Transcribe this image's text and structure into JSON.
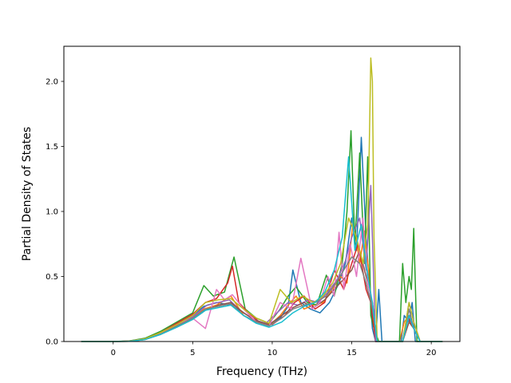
{
  "chart_data": {
    "type": "line",
    "title": "",
    "xlabel": "Frequency (THz)",
    "ylabel": "Partial Density of States",
    "xlim": [
      -3.1,
      21.8
    ],
    "ylim": [
      0,
      2.27
    ],
    "xticks": [
      0,
      5,
      10,
      15,
      20
    ],
    "yticks": [
      0.0,
      0.5,
      1.0,
      1.5,
      2.0
    ],
    "xtick_labels": [
      "0",
      "5",
      "10",
      "15",
      "20"
    ],
    "ytick_labels": [
      "0.0",
      "0.5",
      "1.0",
      "1.5",
      "2.0"
    ],
    "grid": false,
    "legend": "none",
    "series_colors": [
      "#1f77b4",
      "#ff7f0e",
      "#2ca02c",
      "#d62728",
      "#9467bd",
      "#8c564b",
      "#e377c2",
      "#7f7f7f",
      "#bcbd22",
      "#17becf"
    ],
    "series": [
      {
        "color": "#1f77b4",
        "x": [
          -2.0,
          0.0,
          1.0,
          2.0,
          3.0,
          4.0,
          5.0,
          5.7,
          6.5,
          7.4,
          8.2,
          9.0,
          9.8,
          10.5,
          11.0,
          11.3,
          11.8,
          12.4,
          13.0,
          13.6,
          14.2,
          14.6,
          15.0,
          15.3,
          15.6,
          15.9,
          16.1,
          16.3,
          16.5,
          16.7,
          16.9,
          17.5,
          18.1,
          18.3,
          18.6,
          18.8,
          19.0,
          19.5,
          20.0,
          20.7
        ],
        "y": [
          0.0,
          0.0,
          0.003,
          0.02,
          0.07,
          0.13,
          0.2,
          0.27,
          0.3,
          0.28,
          0.22,
          0.16,
          0.13,
          0.18,
          0.27,
          0.55,
          0.3,
          0.25,
          0.22,
          0.3,
          0.45,
          0.6,
          0.95,
          0.7,
          1.57,
          0.8,
          0.45,
          0.1,
          0.0,
          0.4,
          0.0,
          0.0,
          0.0,
          0.2,
          0.15,
          0.3,
          0.0,
          0.0,
          0.0,
          0.0
        ]
      },
      {
        "color": "#ff7f0e",
        "x": [
          -2.0,
          0.0,
          1.0,
          2.0,
          3.0,
          4.0,
          5.0,
          5.7,
          6.5,
          7.4,
          8.2,
          9.0,
          9.8,
          10.5,
          11.0,
          11.5,
          12.0,
          12.6,
          13.2,
          13.8,
          14.3,
          14.7,
          15.1,
          15.5,
          15.8,
          16.1,
          16.3,
          16.5,
          17.0,
          18.0,
          18.3,
          18.6,
          18.9,
          19.3,
          20.0,
          20.7
        ],
        "y": [
          0.0,
          0.0,
          0.002,
          0.015,
          0.06,
          0.12,
          0.18,
          0.25,
          0.28,
          0.35,
          0.2,
          0.15,
          0.12,
          0.2,
          0.28,
          0.35,
          0.25,
          0.28,
          0.3,
          0.4,
          0.5,
          0.45,
          0.95,
          0.6,
          0.85,
          0.5,
          0.2,
          0.0,
          0.0,
          0.0,
          0.15,
          0.2,
          0.1,
          0.0,
          0.0,
          0.0
        ]
      },
      {
        "color": "#2ca02c",
        "x": [
          -2.0,
          0.0,
          1.0,
          2.0,
          3.0,
          4.0,
          5.0,
          5.7,
          6.3,
          7.0,
          7.6,
          8.3,
          9.0,
          9.8,
          10.5,
          11.0,
          11.5,
          12.2,
          12.8,
          13.4,
          13.9,
          14.4,
          14.7,
          14.95,
          15.2,
          15.5,
          15.8,
          16.0,
          16.2,
          16.4,
          16.7,
          17.5,
          18.0,
          18.2,
          18.4,
          18.6,
          18.75,
          18.9,
          19.1,
          19.6,
          20.0,
          20.7
        ],
        "y": [
          0.0,
          0.0,
          0.004,
          0.025,
          0.08,
          0.15,
          0.22,
          0.43,
          0.35,
          0.38,
          0.65,
          0.25,
          0.18,
          0.14,
          0.25,
          0.35,
          0.42,
          0.3,
          0.28,
          0.51,
          0.35,
          0.6,
          1.0,
          1.62,
          0.75,
          1.45,
          0.6,
          1.42,
          0.2,
          0.1,
          0.0,
          0.0,
          0.0,
          0.6,
          0.3,
          0.5,
          0.4,
          0.87,
          0.0,
          0.0,
          0.0,
          0.0
        ]
      },
      {
        "color": "#d62728",
        "x": [
          -2.0,
          0.0,
          1.0,
          2.0,
          3.0,
          4.0,
          5.0,
          5.8,
          6.5,
          7.2,
          7.5,
          7.9,
          8.5,
          9.2,
          10.0,
          10.8,
          11.4,
          12.0,
          12.7,
          13.3,
          13.9,
          14.5,
          15.0,
          15.4,
          15.9,
          16.2,
          16.5,
          17.0,
          18.2,
          18.5,
          18.9,
          19.3,
          20.7
        ],
        "y": [
          0.0,
          0.0,
          0.003,
          0.02,
          0.07,
          0.14,
          0.21,
          0.3,
          0.33,
          0.45,
          0.58,
          0.3,
          0.22,
          0.15,
          0.13,
          0.2,
          0.3,
          0.35,
          0.25,
          0.3,
          0.55,
          0.4,
          0.6,
          0.75,
          0.4,
          0.3,
          0.0,
          0.0,
          0.0,
          0.2,
          0.1,
          0.0,
          0.0
        ]
      },
      {
        "color": "#9467bd",
        "x": [
          -2.0,
          0.0,
          1.0,
          2.0,
          3.0,
          4.0,
          5.0,
          5.9,
          6.6,
          7.3,
          8.0,
          8.8,
          9.6,
          10.3,
          11.0,
          11.6,
          12.3,
          12.9,
          13.5,
          14.1,
          14.6,
          15.0,
          15.5,
          15.9,
          16.2,
          16.5,
          17.0,
          18.2,
          18.6,
          18.9,
          19.3,
          20.7
        ],
        "y": [
          0.0,
          0.0,
          0.003,
          0.018,
          0.06,
          0.12,
          0.19,
          0.28,
          0.3,
          0.32,
          0.24,
          0.17,
          0.14,
          0.22,
          0.3,
          0.28,
          0.32,
          0.3,
          0.38,
          0.48,
          0.62,
          0.8,
          0.95,
          0.55,
          1.2,
          0.0,
          0.0,
          0.0,
          0.3,
          0.15,
          0.0,
          0.0
        ]
      },
      {
        "color": "#8c564b",
        "x": [
          -2.0,
          0.0,
          1.0,
          2.0,
          3.0,
          4.0,
          5.0,
          5.8,
          6.6,
          7.4,
          8.2,
          9.0,
          9.8,
          10.6,
          11.3,
          12.0,
          12.6,
          13.3,
          13.9,
          14.5,
          15.0,
          15.5,
          15.9,
          16.3,
          16.6,
          17.0,
          18.2,
          18.6,
          18.9,
          19.3,
          20.7
        ],
        "y": [
          0.0,
          0.0,
          0.002,
          0.015,
          0.055,
          0.11,
          0.17,
          0.24,
          0.28,
          0.3,
          0.22,
          0.16,
          0.13,
          0.2,
          0.26,
          0.3,
          0.26,
          0.32,
          0.4,
          0.48,
          0.55,
          0.7,
          0.5,
          0.3,
          0.0,
          0.0,
          0.0,
          0.15,
          0.1,
          0.0,
          0.0
        ]
      },
      {
        "color": "#e377c2",
        "x": [
          -2.0,
          0.0,
          1.0,
          2.0,
          3.0,
          4.0,
          5.0,
          5.8,
          6.5,
          7.0,
          7.5,
          8.2,
          9.0,
          9.8,
          10.5,
          11.2,
          11.8,
          12.5,
          13.0,
          13.5,
          13.9,
          14.2,
          14.5,
          14.9,
          15.3,
          15.7,
          16.0,
          16.3,
          16.6,
          17.0,
          18.2,
          18.6,
          18.9,
          19.3,
          20.7
        ],
        "y": [
          0.0,
          0.0,
          0.003,
          0.02,
          0.065,
          0.13,
          0.18,
          0.1,
          0.4,
          0.32,
          0.36,
          0.25,
          0.15,
          0.12,
          0.3,
          0.25,
          0.64,
          0.25,
          0.3,
          0.5,
          0.35,
          0.84,
          0.4,
          0.75,
          0.5,
          0.95,
          0.45,
          0.3,
          0.0,
          0.0,
          0.0,
          0.2,
          0.1,
          0.0,
          0.0
        ]
      },
      {
        "color": "#7f7f7f",
        "x": [
          -2.0,
          0.0,
          1.0,
          2.0,
          3.0,
          4.0,
          5.0,
          5.8,
          6.6,
          7.4,
          8.2,
          9.0,
          9.8,
          10.6,
          11.3,
          12.0,
          12.7,
          13.4,
          14.0,
          14.5,
          15.0,
          15.5,
          15.9,
          16.3,
          16.6,
          17.0,
          18.2,
          18.6,
          18.9,
          19.3,
          20.7
        ],
        "y": [
          0.0,
          0.0,
          0.002,
          0.016,
          0.058,
          0.12,
          0.18,
          0.25,
          0.27,
          0.29,
          0.2,
          0.15,
          0.12,
          0.18,
          0.25,
          0.28,
          0.3,
          0.35,
          0.45,
          0.55,
          0.65,
          0.6,
          0.45,
          0.25,
          0.0,
          0.0,
          0.0,
          0.25,
          0.1,
          0.0,
          0.0
        ]
      },
      {
        "color": "#bcbd22",
        "x": [
          -2.0,
          0.0,
          1.0,
          2.0,
          3.0,
          4.0,
          5.0,
          5.8,
          6.6,
          7.4,
          8.2,
          9.0,
          9.8,
          10.5,
          11.2,
          11.9,
          12.6,
          13.2,
          13.8,
          14.3,
          14.8,
          15.3,
          15.7,
          16.0,
          16.1,
          16.2,
          16.3,
          16.4,
          16.6,
          17.0,
          18.2,
          18.6,
          18.9,
          19.3,
          20.7
        ],
        "y": [
          0.0,
          0.0,
          0.003,
          0.02,
          0.07,
          0.13,
          0.2,
          0.3,
          0.32,
          0.33,
          0.25,
          0.18,
          0.14,
          0.4,
          0.3,
          0.35,
          0.3,
          0.35,
          0.45,
          0.6,
          0.95,
          0.8,
          0.6,
          0.9,
          1.5,
          2.18,
          2.0,
          0.8,
          0.0,
          0.0,
          0.0,
          0.3,
          0.15,
          0.0,
          0.0
        ]
      },
      {
        "color": "#17becf",
        "x": [
          -2.0,
          0.0,
          1.0,
          2.0,
          3.0,
          4.0,
          5.0,
          5.8,
          6.6,
          7.4,
          8.2,
          9.0,
          9.8,
          10.6,
          11.3,
          12.0,
          12.7,
          13.3,
          13.9,
          14.4,
          14.8,
          15.2,
          15.6,
          16.0,
          16.3,
          16.6,
          17.0,
          18.2,
          18.6,
          18.9,
          19.3,
          20.7
        ],
        "y": [
          0.0,
          0.0,
          0.002,
          0.015,
          0.055,
          0.11,
          0.17,
          0.24,
          0.26,
          0.28,
          0.2,
          0.14,
          0.11,
          0.15,
          0.22,
          0.27,
          0.3,
          0.38,
          0.55,
          0.8,
          1.42,
          0.7,
          0.9,
          0.5,
          0.3,
          0.0,
          0.0,
          0.0,
          0.2,
          0.1,
          0.0,
          0.0
        ]
      }
    ]
  }
}
